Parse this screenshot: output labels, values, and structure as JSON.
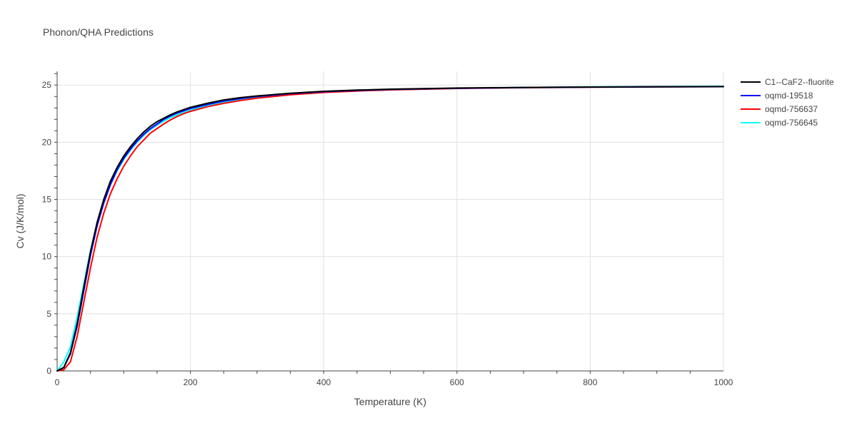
{
  "chart_data": {
    "type": "line",
    "title": "Phonon/QHA Predictions",
    "xlabel": "Temperature (K)",
    "ylabel": "Cv (J/K/mol)",
    "xlim": [
      0,
      1000
    ],
    "ylim": [
      0,
      26.2
    ],
    "xticks": [
      0,
      200,
      400,
      600,
      800,
      1000
    ],
    "yticks": [
      0,
      5,
      10,
      15,
      20,
      25
    ],
    "x_tick_labels": [
      "0",
      "200",
      "400",
      "600",
      "800",
      "1000"
    ],
    "y_tick_labels": [
      "0",
      "5",
      "10",
      "15",
      "20",
      "25"
    ],
    "grid": true,
    "legend_position": "top-right",
    "series": [
      {
        "name": "C1--CaF2--fluorite",
        "color": "#000000",
        "x": [
          0,
          10,
          20,
          30,
          40,
          50,
          60,
          70,
          80,
          90,
          100,
          110,
          120,
          130,
          140,
          150,
          160,
          170,
          180,
          190,
          200,
          225,
          250,
          275,
          300,
          350,
          400,
          450,
          500,
          600,
          700,
          800,
          900,
          1000
        ],
        "y": [
          0,
          0.3,
          1.6,
          4.1,
          7.3,
          10.4,
          13.0,
          15.0,
          16.6,
          17.8,
          18.8,
          19.6,
          20.3,
          20.9,
          21.4,
          21.8,
          22.1,
          22.4,
          22.65,
          22.85,
          23.05,
          23.4,
          23.7,
          23.9,
          24.05,
          24.28,
          24.45,
          24.56,
          24.64,
          24.74,
          24.79,
          24.83,
          24.85,
          24.87
        ]
      },
      {
        "name": "oqmd-19518",
        "color": "#0000ff",
        "x": [
          0,
          10,
          20,
          30,
          40,
          50,
          60,
          70,
          80,
          90,
          100,
          110,
          120,
          130,
          140,
          150,
          160,
          170,
          180,
          190,
          200,
          225,
          250,
          275,
          300,
          350,
          400,
          450,
          500,
          600,
          700,
          800,
          900,
          1000
        ],
        "y": [
          0,
          0.3,
          1.5,
          3.9,
          7.0,
          10.1,
          12.7,
          14.7,
          16.3,
          17.6,
          18.6,
          19.4,
          20.1,
          20.7,
          21.2,
          21.6,
          22.0,
          22.3,
          22.55,
          22.75,
          22.95,
          23.3,
          23.6,
          23.82,
          24.0,
          24.25,
          24.42,
          24.53,
          24.62,
          24.72,
          24.78,
          24.82,
          24.84,
          24.86
        ]
      },
      {
        "name": "oqmd-756637",
        "color": "#ff0000",
        "x": [
          0,
          10,
          20,
          30,
          40,
          50,
          60,
          70,
          80,
          90,
          100,
          110,
          120,
          130,
          140,
          150,
          160,
          170,
          180,
          190,
          200,
          225,
          250,
          275,
          300,
          350,
          400,
          450,
          500,
          600,
          700,
          800,
          900,
          1000
        ],
        "y": [
          0,
          0.1,
          0.8,
          3.0,
          6.0,
          9.0,
          11.7,
          13.8,
          15.5,
          16.8,
          17.9,
          18.8,
          19.6,
          20.2,
          20.8,
          21.2,
          21.6,
          21.95,
          22.25,
          22.5,
          22.7,
          23.1,
          23.4,
          23.65,
          23.85,
          24.15,
          24.35,
          24.48,
          24.58,
          24.7,
          24.77,
          24.81,
          24.84,
          24.86
        ]
      },
      {
        "name": "oqmd-756645",
        "color": "#00ffff",
        "x": [
          0,
          10,
          20,
          30,
          40,
          50,
          60,
          70,
          80,
          90,
          100,
          110,
          120,
          130,
          140,
          150,
          160,
          170,
          180,
          190,
          200,
          225,
          250,
          275,
          300,
          350,
          400,
          450,
          500,
          600,
          700,
          800,
          900,
          1000
        ],
        "y": [
          0,
          0.8,
          2.1,
          4.7,
          7.6,
          10.5,
          12.9,
          14.8,
          16.3,
          17.5,
          18.5,
          19.3,
          20.0,
          20.6,
          21.1,
          21.5,
          21.85,
          22.15,
          22.4,
          22.6,
          22.8,
          23.2,
          23.5,
          23.75,
          23.95,
          24.2,
          24.4,
          24.52,
          24.61,
          24.72,
          24.79,
          24.84,
          24.87,
          24.9
        ]
      }
    ]
  }
}
